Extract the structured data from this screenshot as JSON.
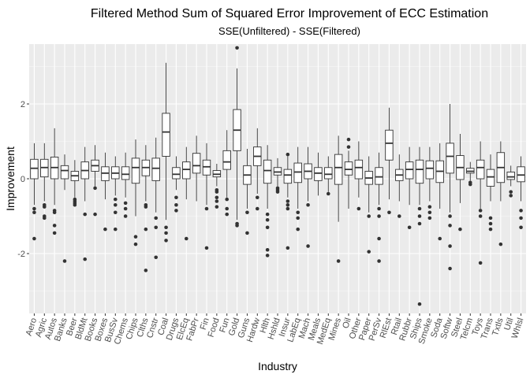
{
  "chart_data": {
    "type": "boxplot",
    "title": "Filtered Method Sum of Squared Error Improvement of ECC Estimation",
    "subtitle": "SSE(Unfiltered) - SSE(Filtered)",
    "xlabel": "Industry",
    "ylabel": "Improvement",
    "ylim": [
      -3.6,
      3.6
    ],
    "yticks": [
      -2,
      0,
      2
    ],
    "grid": true,
    "legend": "none",
    "colors": {
      "panel": "#ebebeb",
      "grid_major": "#ffffff",
      "box_fill": "#ffffff",
      "box_line": "#333333",
      "outlier": "#333333"
    },
    "categories": [
      "Aero",
      "Agric",
      "Autos",
      "Banks",
      "Beer",
      "BldMt",
      "Books",
      "Boxes",
      "BusSv",
      "Chems",
      "Chips",
      "Clths",
      "Cnstr",
      "Coal",
      "Drugs",
      "ElcEq",
      "FabPr",
      "Fin",
      "Food",
      "Fun",
      "Gold",
      "Guns",
      "Hardw",
      "Hlth",
      "Hshld",
      "Insur",
      "LabEq",
      "Mach",
      "Meals",
      "MedEq",
      "Mines",
      "Oil",
      "Other",
      "Paper",
      "PerSv",
      "RlEst",
      "Rtail",
      "Rubbr",
      "Ships",
      "Smoke",
      "Soda",
      "Softw",
      "Steel",
      "Telcm",
      "Toys",
      "Trans",
      "Txtls",
      "Util",
      "Whlsl"
    ],
    "boxes": [
      {
        "min": -0.7,
        "q1": 0.0,
        "median": 0.28,
        "q3": 0.52,
        "max": 0.95,
        "outliers": [
          -0.8,
          -0.9,
          -1.6
        ]
      },
      {
        "min": -0.6,
        "q1": 0.05,
        "median": 0.3,
        "q3": 0.52,
        "max": 0.95,
        "outliers": [
          -0.7,
          -0.75,
          -1.0,
          -1.05
        ]
      },
      {
        "min": -0.7,
        "q1": 0.0,
        "median": 0.3,
        "q3": 0.58,
        "max": 1.35,
        "outliers": [
          -0.85,
          -0.9,
          -1.25,
          -1.45
        ]
      },
      {
        "min": -0.3,
        "q1": 0.0,
        "median": 0.22,
        "q3": 0.35,
        "max": 0.65,
        "outliers": [
          -2.2
        ]
      },
      {
        "min": -0.5,
        "q1": -0.05,
        "median": 0.08,
        "q3": 0.2,
        "max": 0.5,
        "outliers": [
          -0.55,
          -0.6,
          -0.65,
          -0.7
        ]
      },
      {
        "min": -0.6,
        "q1": 0.0,
        "median": 0.22,
        "q3": 0.45,
        "max": 0.85,
        "outliers": [
          -0.95,
          -2.15
        ]
      },
      {
        "min": -0.2,
        "q1": 0.2,
        "median": 0.35,
        "q3": 0.5,
        "max": 0.9,
        "outliers": [
          -0.25,
          -0.95
        ]
      },
      {
        "min": -0.55,
        "q1": -0.05,
        "median": 0.15,
        "q3": 0.32,
        "max": 0.7,
        "outliers": [
          -1.35
        ]
      },
      {
        "min": -0.45,
        "q1": 0.0,
        "median": 0.15,
        "q3": 0.32,
        "max": 0.6,
        "outliers": [
          -0.55,
          -0.7,
          -0.9,
          -1.35
        ]
      },
      {
        "min": -0.5,
        "q1": -0.02,
        "median": 0.12,
        "q3": 0.32,
        "max": 0.7,
        "outliers": [
          -0.65,
          -0.8,
          -1.0
        ]
      },
      {
        "min": -1.0,
        "q1": -0.12,
        "median": 0.3,
        "q3": 0.55,
        "max": 1.05,
        "outliers": [
          -1.55,
          -1.75
        ]
      },
      {
        "min": -0.6,
        "q1": 0.08,
        "median": 0.3,
        "q3": 0.5,
        "max": 0.9,
        "outliers": [
          -0.7,
          -0.75,
          -1.35,
          -2.45
        ]
      },
      {
        "min": -0.9,
        "q1": -0.05,
        "median": 0.28,
        "q3": 0.55,
        "max": 1.1,
        "outliers": [
          -1.05,
          -1.3,
          -2.1
        ]
      },
      {
        "min": -1.1,
        "q1": 0.6,
        "median": 1.25,
        "q3": 1.75,
        "max": 3.1,
        "outliers": [
          -1.3,
          -1.45,
          -1.65
        ]
      },
      {
        "min": -0.3,
        "q1": 0.0,
        "median": 0.12,
        "q3": 0.3,
        "max": 0.6,
        "outliers": [
          -0.5,
          -0.7,
          -0.85
        ]
      },
      {
        "min": -0.55,
        "q1": 0.0,
        "median": 0.25,
        "q3": 0.45,
        "max": 0.85,
        "outliers": [
          -1.6
        ]
      },
      {
        "min": -0.6,
        "q1": 0.15,
        "median": 0.35,
        "q3": 0.68,
        "max": 1.15,
        "outliers": []
      },
      {
        "min": -0.7,
        "q1": 0.1,
        "median": 0.32,
        "q3": 0.5,
        "max": 0.95,
        "outliers": [
          -0.8,
          -1.85
        ]
      },
      {
        "min": -0.2,
        "q1": 0.05,
        "median": 0.12,
        "q3": 0.22,
        "max": 0.4,
        "outliers": [
          -0.3,
          -0.35,
          -0.5,
          -0.6,
          -0.75
        ]
      },
      {
        "min": -0.5,
        "q1": 0.25,
        "median": 0.45,
        "q3": 0.75,
        "max": 1.3,
        "outliers": [
          -0.55,
          -0.8,
          -0.95
        ]
      },
      {
        "min": -1.1,
        "q1": 0.75,
        "median": 1.3,
        "q3": 1.85,
        "max": 2.95,
        "outliers": [
          3.5,
          -1.2,
          -1.25
        ]
      },
      {
        "min": -0.8,
        "q1": -0.15,
        "median": 0.1,
        "q3": 0.35,
        "max": 0.8,
        "outliers": [
          -0.9,
          -1.45
        ]
      },
      {
        "min": -0.4,
        "q1": 0.35,
        "median": 0.6,
        "q3": 0.85,
        "max": 1.35,
        "outliers": [
          -0.5,
          -0.8
        ]
      },
      {
        "min": -0.8,
        "q1": -0.12,
        "median": 0.22,
        "q3": 0.5,
        "max": 0.9,
        "outliers": [
          -0.95,
          -1.1,
          -1.3,
          -1.9,
          -2.05
        ]
      },
      {
        "min": -0.2,
        "q1": 0.1,
        "median": 0.18,
        "q3": 0.3,
        "max": 0.55,
        "outliers": [
          -0.25,
          -0.3,
          -0.35
        ]
      },
      {
        "min": -0.5,
        "q1": -0.12,
        "median": 0.1,
        "q3": 0.25,
        "max": 0.6,
        "outliers": [
          -0.6,
          -0.7,
          -0.8,
          -1.85,
          0.65
        ]
      },
      {
        "min": -0.8,
        "q1": -0.1,
        "median": 0.18,
        "q3": 0.42,
        "max": 0.85,
        "outliers": [
          -0.9,
          -1.05,
          -1.35
        ]
      },
      {
        "min": -0.6,
        "q1": 0.0,
        "median": 0.2,
        "q3": 0.4,
        "max": 0.85,
        "outliers": [
          -0.7,
          -1.8
        ]
      },
      {
        "min": -0.45,
        "q1": -0.05,
        "median": 0.15,
        "q3": 0.3,
        "max": 0.7,
        "outliers": []
      },
      {
        "min": -0.35,
        "q1": 0.0,
        "median": 0.12,
        "q3": 0.3,
        "max": 0.6,
        "outliers": [
          -0.4
        ]
      },
      {
        "min": -1.15,
        "q1": -0.15,
        "median": 0.3,
        "q3": 0.65,
        "max": 1.15,
        "outliers": [
          -2.2
        ]
      },
      {
        "min": -0.8,
        "q1": 0.1,
        "median": 0.25,
        "q3": 0.45,
        "max": 0.75,
        "outliers": [
          0.85,
          1.05
        ]
      },
      {
        "min": -0.5,
        "q1": 0.0,
        "median": 0.3,
        "q3": 0.5,
        "max": 1.0,
        "outliers": [
          -0.8
        ]
      },
      {
        "min": -0.9,
        "q1": -0.15,
        "median": 0.02,
        "q3": 0.2,
        "max": 0.6,
        "outliers": [
          -1.0,
          -1.95
        ]
      },
      {
        "min": -0.7,
        "q1": -0.15,
        "median": 0.05,
        "q3": 0.3,
        "max": 0.7,
        "outliers": [
          -0.8,
          -1.0,
          -1.6,
          -2.2
        ]
      },
      {
        "min": -0.55,
        "q1": 0.5,
        "median": 0.95,
        "q3": 1.3,
        "max": 1.9,
        "outliers": [
          -0.9
        ]
      },
      {
        "min": -0.6,
        "q1": -0.05,
        "median": 0.1,
        "q3": 0.25,
        "max": 0.65,
        "outliers": [
          -1.0
        ]
      },
      {
        "min": -0.7,
        "q1": 0.0,
        "median": 0.25,
        "q3": 0.45,
        "max": 0.85,
        "outliers": [
          -1.3
        ]
      },
      {
        "min": -0.7,
        "q1": -0.12,
        "median": 0.25,
        "q3": 0.5,
        "max": 0.85,
        "outliers": [
          -0.8,
          -1.0,
          -1.2,
          -3.35
        ]
      },
      {
        "min": -0.6,
        "q1": 0.0,
        "median": 0.28,
        "q3": 0.48,
        "max": 0.85,
        "outliers": [
          -0.75,
          -0.9,
          -1.05
        ]
      },
      {
        "min": -0.8,
        "q1": -0.1,
        "median": 0.2,
        "q3": 0.48,
        "max": 0.95,
        "outliers": [
          -1.6
        ]
      },
      {
        "min": -0.9,
        "q1": 0.15,
        "median": 0.6,
        "q3": 0.95,
        "max": 2.0,
        "outliers": [
          -1.0,
          -1.25,
          -1.8,
          -2.4
        ]
      },
      {
        "min": -0.65,
        "q1": -0.02,
        "median": 0.3,
        "q3": 0.62,
        "max": 1.2,
        "outliers": [
          -1.35
        ]
      },
      {
        "min": -0.05,
        "q1": 0.15,
        "median": 0.2,
        "q3": 0.28,
        "max": 0.45,
        "outliers": [
          -0.1,
          -0.15
        ]
      },
      {
        "min": -0.8,
        "q1": 0.0,
        "median": 0.3,
        "q3": 0.5,
        "max": 1.0,
        "outliers": [
          -0.85,
          -1.0,
          -2.25
        ]
      },
      {
        "min": -0.6,
        "q1": -0.2,
        "median": 0.05,
        "q3": 0.25,
        "max": 0.65,
        "outliers": [
          -1.05,
          -1.2,
          -1.35
        ]
      },
      {
        "min": -0.6,
        "q1": -0.1,
        "median": 0.3,
        "q3": 0.7,
        "max": 1.0,
        "outliers": [
          -1.75
        ]
      },
      {
        "min": -0.2,
        "q1": -0.02,
        "median": 0.05,
        "q3": 0.18,
        "max": 0.35,
        "outliers": [
          -0.35,
          -0.45
        ]
      },
      {
        "min": -0.6,
        "q1": -0.08,
        "median": 0.1,
        "q3": 0.32,
        "max": 0.6,
        "outliers": [
          -0.85,
          -1.05,
          -1.3
        ]
      }
    ]
  }
}
